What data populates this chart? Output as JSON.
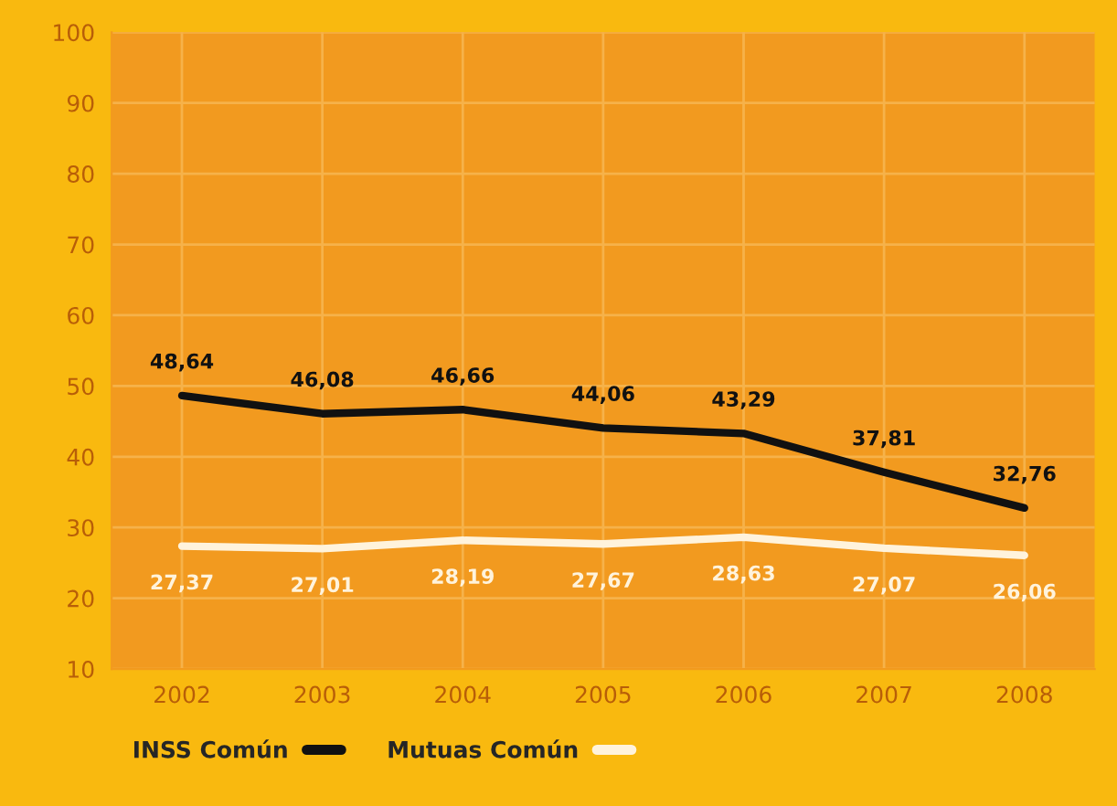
{
  "chart_data": {
    "type": "line",
    "categories": [
      "2002",
      "2003",
      "2004",
      "2005",
      "2006",
      "2007",
      "2008"
    ],
    "ylim": [
      10,
      100
    ],
    "yticks": [
      10,
      20,
      30,
      40,
      50,
      60,
      70,
      80,
      90,
      100
    ],
    "grid": true,
    "legend": "bottom left",
    "marker": "none",
    "line_style": "solid",
    "series": [
      {
        "name": "INSS Común",
        "color": "#111111",
        "values": [
          48.64,
          46.08,
          46.66,
          44.06,
          43.29,
          37.81,
          32.76
        ],
        "value_labels": [
          "48,64",
          "46,08",
          "46,66",
          "44,06",
          "43,29",
          "37,81",
          "32,76"
        ]
      },
      {
        "name": "Mutuas Común",
        "color": "#fff3dc",
        "values": [
          27.37,
          27.01,
          28.19,
          27.67,
          28.63,
          27.07,
          26.06
        ],
        "value_labels": [
          "27,37",
          "27,01",
          "28,19",
          "27,67",
          "28,63",
          "27,07",
          "26,06"
        ]
      }
    ]
  }
}
